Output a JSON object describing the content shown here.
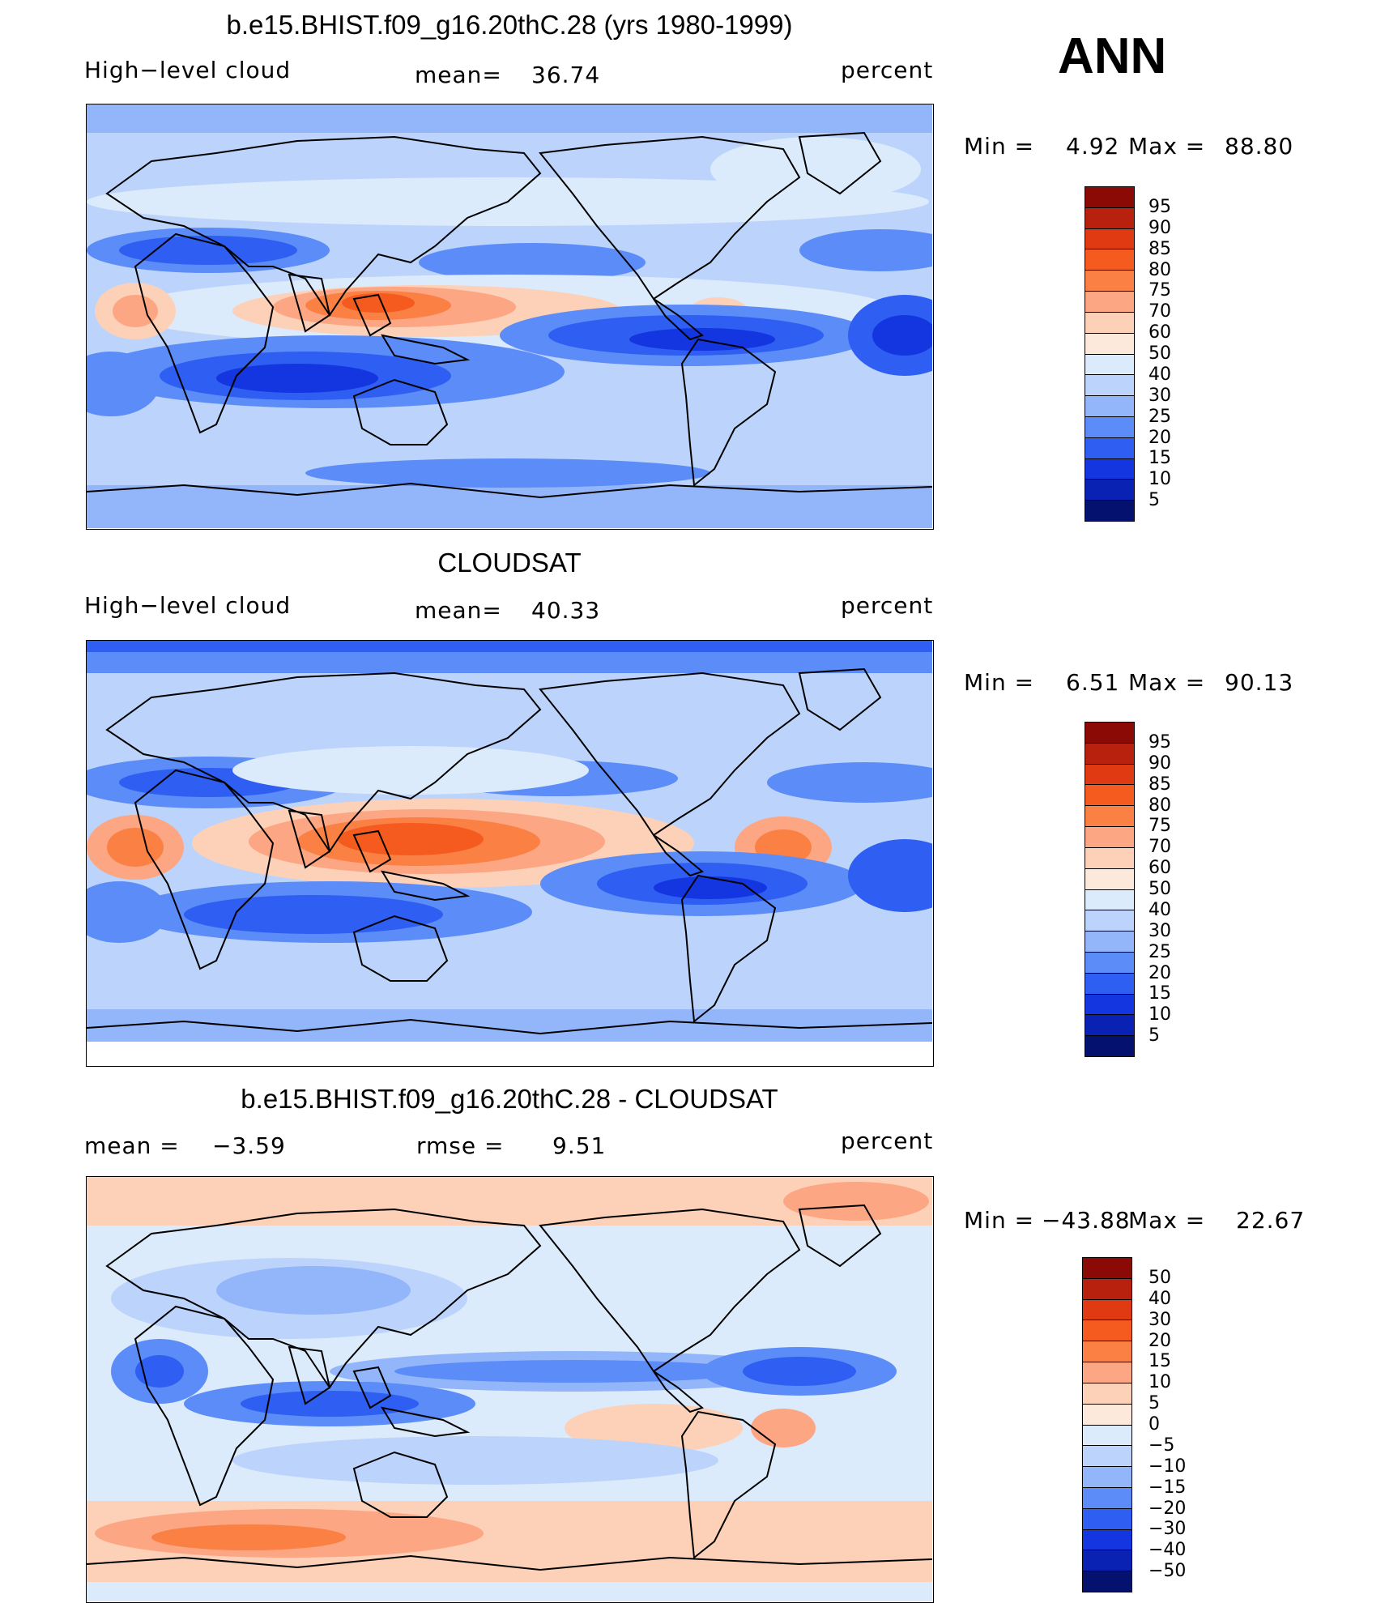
{
  "season": "ANN",
  "panels": [
    {
      "title": "b.e15.BHIST.f09_g16.20thC.28 (yrs 1980-1999)",
      "left_label": "High−level cloud",
      "stat1_label": "mean=",
      "stat1_value": "36.74",
      "stat2_label": "",
      "stat2_value": "",
      "units": "percent",
      "min_label": "Min =",
      "min_value": "4.92",
      "max_label": "Max =",
      "max_value": "88.80",
      "colorbar": {
        "levels": [
          "95",
          "90",
          "85",
          "80",
          "75",
          "70",
          "60",
          "50",
          "40",
          "30",
          "25",
          "20",
          "15",
          "10",
          "5"
        ],
        "colors": [
          "#8b0a05",
          "#b8210e",
          "#e03a12",
          "#f55a1e",
          "#fb8044",
          "#fca684",
          "#fdd0b8",
          "#fde9dc",
          "#dcebfb",
          "#bcd4fb",
          "#93b6fa",
          "#5c8cf7",
          "#2e5ef2",
          "#1436e0",
          "#0a22b4",
          "#05116e"
        ]
      },
      "map_scheme": "model"
    },
    {
      "title": "CLOUDSAT",
      "left_label": "High−level cloud",
      "stat1_label": "mean=",
      "stat1_value": "40.33",
      "stat2_label": "",
      "stat2_value": "",
      "units": "percent",
      "min_label": "Min =",
      "min_value": "6.51",
      "max_label": "Max =",
      "max_value": "90.13",
      "colorbar": {
        "levels": [
          "95",
          "90",
          "85",
          "80",
          "75",
          "70",
          "60",
          "50",
          "40",
          "30",
          "25",
          "20",
          "15",
          "10",
          "5"
        ],
        "colors": [
          "#8b0a05",
          "#b8210e",
          "#e03a12",
          "#f55a1e",
          "#fb8044",
          "#fca684",
          "#fdd0b8",
          "#fde9dc",
          "#dcebfb",
          "#bcd4fb",
          "#93b6fa",
          "#5c8cf7",
          "#2e5ef2",
          "#1436e0",
          "#0a22b4",
          "#05116e"
        ]
      },
      "map_scheme": "obs"
    },
    {
      "title": "b.e15.BHIST.f09_g16.20thC.28 - CLOUDSAT",
      "left_label": "mean =",
      "left_value": "−3.59",
      "stat1_label": "rmse =",
      "stat1_value": "9.51",
      "stat2_label": "",
      "stat2_value": "",
      "units": "percent",
      "min_label": "Min =",
      "min_value": "−43.88",
      "max_label": "Max =",
      "max_value": "22.67",
      "colorbar": {
        "levels": [
          "50",
          "40",
          "30",
          "20",
          "15",
          "10",
          "5",
          "0",
          "−5",
          "−10",
          "−15",
          "−20",
          "−30",
          "−40",
          "−50"
        ],
        "colors": [
          "#8b0a05",
          "#b8210e",
          "#e03a12",
          "#f55a1e",
          "#fb8044",
          "#fca684",
          "#fdd0b8",
          "#fde9dc",
          "#dcebfb",
          "#bcd4fb",
          "#93b6fa",
          "#5c8cf7",
          "#2e5ef2",
          "#1436e0",
          "#0a22b4",
          "#05116e"
        ]
      },
      "map_scheme": "diff"
    }
  ]
}
